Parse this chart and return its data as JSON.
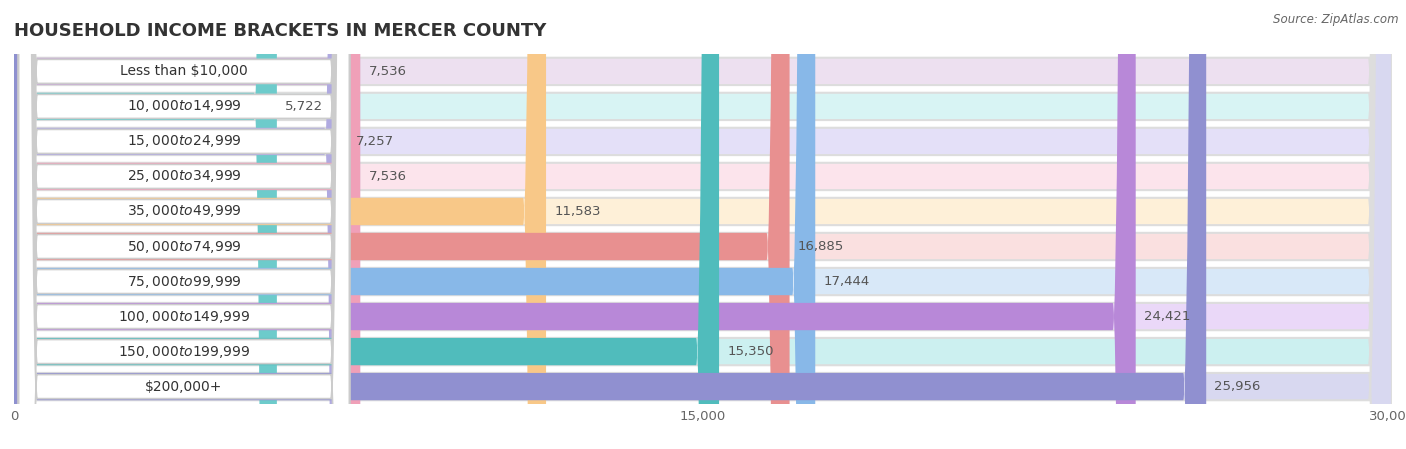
{
  "title": "HOUSEHOLD INCOME BRACKETS IN MERCER COUNTY",
  "source": "Source: ZipAtlas.com",
  "categories": [
    "Less than $10,000",
    "$10,000 to $14,999",
    "$15,000 to $24,999",
    "$25,000 to $34,999",
    "$35,000 to $49,999",
    "$50,000 to $74,999",
    "$75,000 to $99,999",
    "$100,000 to $149,999",
    "$150,000 to $199,999",
    "$200,000+"
  ],
  "values": [
    7536,
    5722,
    7257,
    7536,
    11583,
    16885,
    17444,
    24421,
    15350,
    25956
  ],
  "bar_colors": [
    "#c9aed4",
    "#6dcbcb",
    "#b0aae0",
    "#f0a0b8",
    "#f8c888",
    "#e89090",
    "#88b8e8",
    "#b888d8",
    "#50bcbc",
    "#9090d0"
  ],
  "bar_bg_colors": [
    "#ede0f0",
    "#d8f4f4",
    "#e4e0f8",
    "#fce4ec",
    "#fef0d8",
    "#fae0e0",
    "#d8e8f8",
    "#ead8f8",
    "#ccf0f0",
    "#d8d8f0"
  ],
  "xlim": [
    0,
    30000
  ],
  "xticks": [
    0,
    15000,
    30000
  ],
  "xtick_labels": [
    "0",
    "15,000",
    "30,000"
  ],
  "background_color": "#ffffff",
  "bar_bg_overall": "#f0f0f0",
  "title_fontsize": 13,
  "label_fontsize": 10,
  "value_fontsize": 9.5
}
